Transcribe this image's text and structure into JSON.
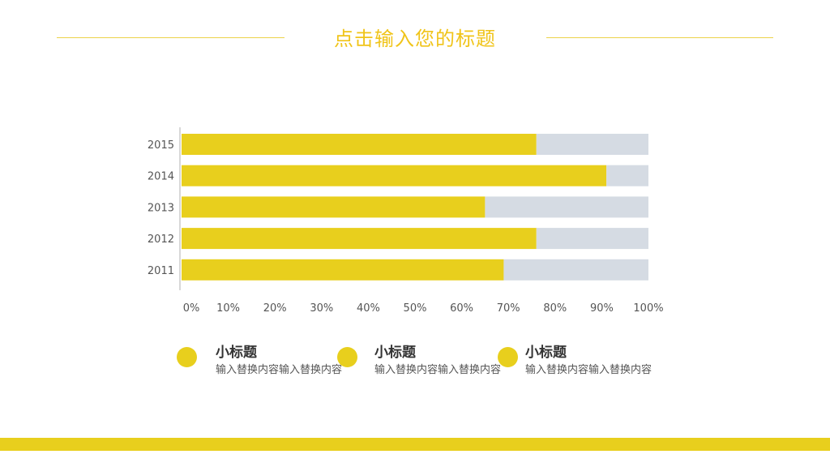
{
  "header": {
    "title": "点击输入您的标题"
  },
  "colors": {
    "accent": "#e8cf1d",
    "remainder": "#d5dbe3",
    "title": "#f0c419"
  },
  "chart_data": {
    "type": "bar",
    "orientation": "horizontal",
    "stacked": true,
    "categories": [
      "2015",
      "2014",
      "2013",
      "2012",
      "2011"
    ],
    "series": [
      {
        "name": "value",
        "color": "#e8cf1d",
        "values": [
          76,
          91,
          65,
          76,
          69
        ]
      },
      {
        "name": "remainder",
        "color": "#d5dbe3",
        "values": [
          24,
          9,
          35,
          24,
          31
        ]
      }
    ],
    "xlim": [
      0,
      100
    ],
    "xticks": [
      "0%",
      "10%",
      "20%",
      "30%",
      "40%",
      "50%",
      "60%",
      "70%",
      "80%",
      "90%",
      "100%"
    ],
    "title": "",
    "xlabel": "",
    "ylabel": ""
  },
  "legend": [
    {
      "title": "小标题",
      "text": "输入替换内容输入替换内容"
    },
    {
      "title": "小标题",
      "text": "输入替换内容输入替换内容"
    },
    {
      "title": "小标题",
      "text": "输入替换内容输入替换内容"
    }
  ]
}
